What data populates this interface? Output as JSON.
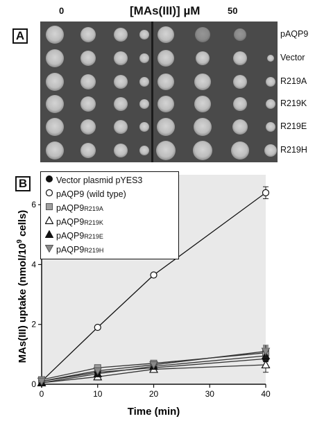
{
  "panelA": {
    "label": "A",
    "title_main": "[MAs(III)] ",
    "title_unit": "µM",
    "conc_left": "0",
    "conc_right": "50",
    "strains": [
      "pAQP9",
      "Vector",
      "R219A",
      "R219K",
      "R219E",
      "R219H"
    ]
  },
  "panelB": {
    "label": "B"
  },
  "chart_data": {
    "type": "line",
    "xlabel": "Time (min)",
    "ylabel": "MAs(III) uptake (nmol/10",
    "ylabel_sup": "9",
    "ylabel_tail": " cells)",
    "xlim": [
      0,
      40
    ],
    "ylim": [
      0,
      7
    ],
    "xticks": [
      "0",
      "10",
      "20",
      "30",
      "40"
    ],
    "yticks": [
      "0",
      "2",
      "4",
      "6"
    ],
    "x": [
      0,
      10,
      20,
      40
    ],
    "legend_position": "top-left",
    "grid": false,
    "background": "#e9e9e9",
    "series": [
      {
        "name": "Vector plasmid pYES3",
        "name_sub": "",
        "marker": "filled-circle",
        "color": "#111111",
        "values": [
          0.1,
          0.4,
          0.55,
          0.85
        ],
        "errors": [
          0,
          0,
          0,
          0.1
        ]
      },
      {
        "name": "pAQP9 (wild type)",
        "name_sub": "",
        "marker": "open-circle",
        "color": "#111111",
        "values": [
          0.1,
          1.9,
          3.65,
          6.4
        ],
        "errors": [
          0,
          0,
          0,
          0.2
        ]
      },
      {
        "name": "pAQP9",
        "name_sub": "R219A",
        "marker": "gray-square",
        "color": "#8a8a8a",
        "values": [
          0.15,
          0.55,
          0.7,
          1.05
        ],
        "errors": [
          0,
          0,
          0,
          0.2
        ]
      },
      {
        "name": "pAQP9",
        "name_sub": "R219K",
        "marker": "open-triangle",
        "color": "#111111",
        "values": [
          0.05,
          0.25,
          0.5,
          0.65
        ],
        "errors": [
          0,
          0,
          0,
          0.25
        ]
      },
      {
        "name": "pAQP9",
        "name_sub": "R219E",
        "marker": "filled-triangle",
        "color": "#111111",
        "values": [
          0.05,
          0.35,
          0.6,
          0.95
        ],
        "errors": [
          0,
          0,
          0,
          0.15
        ]
      },
      {
        "name": "pAQP9",
        "name_sub": "R219H",
        "marker": "gray-inverted-triangle",
        "color": "#8a8a8a",
        "values": [
          0.1,
          0.45,
          0.65,
          1.1
        ],
        "errors": [
          0,
          0,
          0,
          0.2
        ]
      }
    ]
  }
}
